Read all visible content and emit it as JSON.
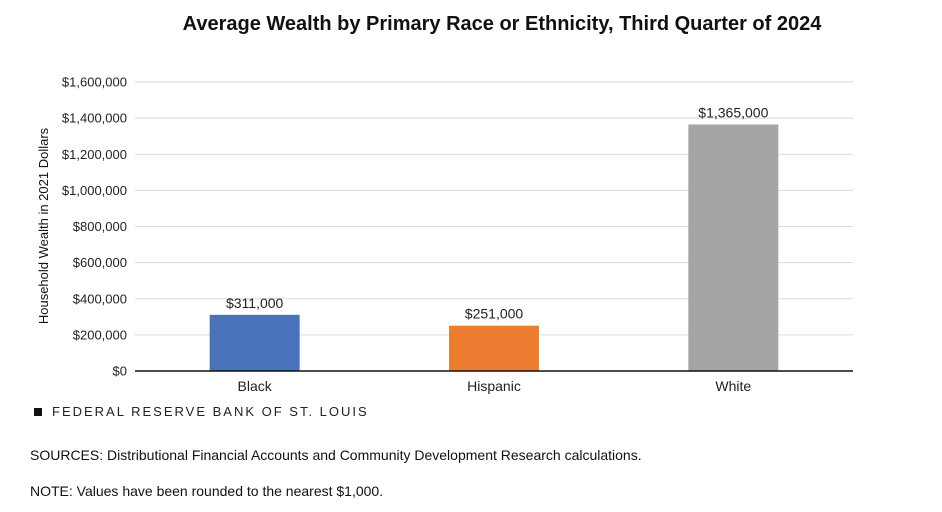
{
  "chart_data": {
    "type": "bar",
    "title": "Average Wealth by Primary Race or Ethnicity, Third Quarter of 2024",
    "xlabel": "",
    "ylabel": "Household Wealth in 2021 Dollars",
    "categories": [
      "Black",
      "Hispanic",
      "White"
    ],
    "values": [
      311000,
      251000,
      1365000
    ],
    "data_labels": [
      "$311,000",
      "$251,000",
      "$1,365,000"
    ],
    "colors": [
      "#4A72BB",
      "#ED7D31",
      "#A5A5A5"
    ],
    "ylim": [
      0,
      1600000
    ],
    "yticks": [
      0,
      200000,
      400000,
      600000,
      800000,
      1000000,
      1200000,
      1400000,
      1600000
    ],
    "ytick_labels": [
      "$0",
      "$200,000",
      "$400,000",
      "$600,000",
      "$800,000",
      "$1,000,000",
      "$1,200,000",
      "$1,400,000",
      "$1,600,000"
    ],
    "grid": true,
    "legend": "none"
  },
  "brand": {
    "text": "FEDERAL RESERVE BANK OF ST. LOUIS"
  },
  "footer": {
    "sources": "SOURCES: Distributional Financial Accounts and Community Development Research calculations.",
    "note": "NOTE: Values have been rounded to the nearest $1,000."
  }
}
